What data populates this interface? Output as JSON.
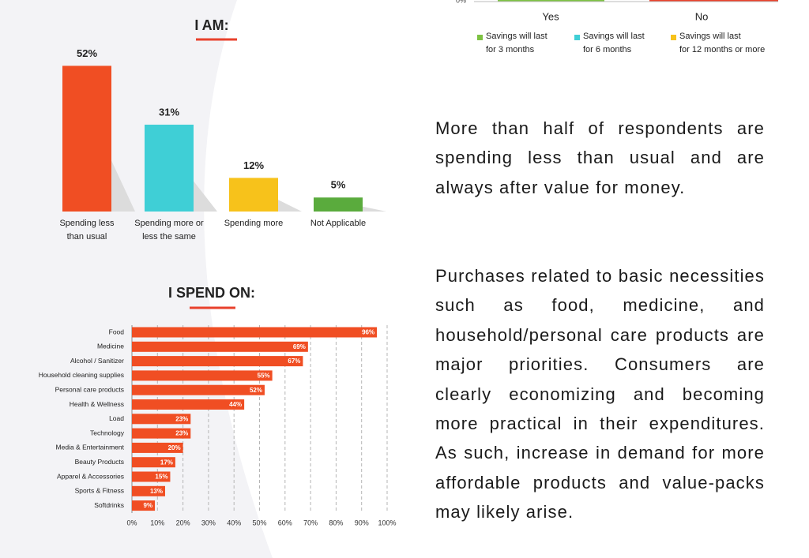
{
  "chart_data": [
    {
      "type": "bar",
      "categories": [
        "Yes",
        "No"
      ],
      "yticks": [
        {
          "value": 0,
          "label": "0%"
        }
      ],
      "series": [
        {
          "name": "Savings will last\nfor 3 months",
          "color": "#7dc242"
        },
        {
          "name": "Savings will last\nfor 6 months",
          "color": "#3fcfd6"
        },
        {
          "name": "Savings will last\nfor 12 months or more",
          "color": "#f7c21b"
        }
      ]
    },
    {
      "type": "bar",
      "title": "I AM:",
      "categories": [
        "Spending less\nthan usual",
        "Spending more or\nless the same",
        "Spending more",
        "Not Applicable"
      ],
      "values": [
        52,
        31,
        12,
        5
      ],
      "value_labels": [
        "52%",
        "31%",
        "12%",
        "5%"
      ],
      "colors": [
        "#f04e23",
        "#3fcfd6",
        "#f7c21b",
        "#5aab3d"
      ]
    },
    {
      "type": "barh",
      "title": "I SPEND ON:",
      "categories": [
        "Food",
        "Medicine",
        "Alcohol / Sanitizer",
        "Household cleaning supplies",
        "Personal care products",
        "Health & Wellness",
        "Load",
        "Technology",
        "Media & Entertainment",
        "Beauty Products",
        "Apparel & Accessories",
        "Sports & Fitness",
        "Softdrinks"
      ],
      "values": [
        96,
        69,
        67,
        55,
        52,
        44,
        23,
        23,
        20,
        17,
        15,
        13,
        9
      ],
      "value_labels": [
        "96%",
        "69%",
        "67%",
        "55%",
        "52%",
        "44%",
        "23%",
        "23%",
        "20%",
        "17%",
        "15%",
        "13%",
        "9%"
      ],
      "color": "#f04e23",
      "xlim": [
        0,
        100
      ],
      "xticks": [
        {
          "value": 0,
          "label": "0%"
        },
        {
          "value": 10,
          "label": "10%"
        },
        {
          "value": 20,
          "label": "20%"
        },
        {
          "value": 30,
          "label": "30%"
        },
        {
          "value": 40,
          "label": "40%"
        },
        {
          "value": 50,
          "label": "50%"
        },
        {
          "value": 60,
          "label": "60%"
        },
        {
          "value": 70,
          "label": "70%"
        },
        {
          "value": 80,
          "label": "80%"
        },
        {
          "value": 90,
          "label": "90%"
        },
        {
          "value": 100,
          "label": "100%"
        }
      ],
      "grid": true
    }
  ],
  "paragraphs": [
    "More than half of respondents are spending less than usual and are always after value for money.",
    "Purchases related to basic necessities such as food, medicine, and household/personal care products are major priorities. Consumers are clearly economizing and  becoming more practical in their expenditures.  As such, increase in demand for more affordable products and value-packs may likely arise."
  ]
}
